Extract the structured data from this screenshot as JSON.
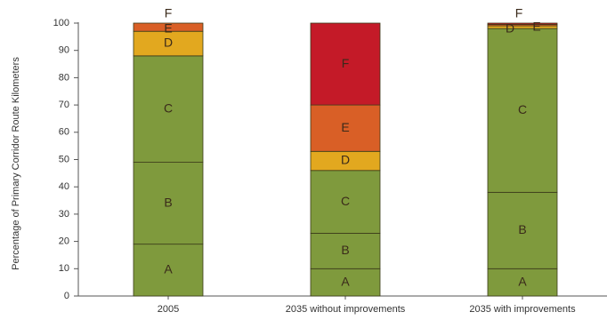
{
  "chart_data": {
    "type": "bar",
    "stacked": true,
    "title": "",
    "xlabel": "",
    "ylabel": "Percentage of Primary Corridor Route Kilometers",
    "ylim": [
      0,
      100
    ],
    "yticks": [
      0,
      10,
      20,
      30,
      40,
      50,
      60,
      70,
      80,
      90,
      100
    ],
    "categories": [
      "2005",
      "2035 without improvements",
      "2035 with improvements"
    ],
    "grid": false,
    "legend": "none",
    "series": [
      {
        "name": "A",
        "color": "#7f9a3d",
        "values": [
          19,
          10,
          10
        ]
      },
      {
        "name": "B",
        "color": "#7f9a3d",
        "values": [
          30,
          13,
          28
        ]
      },
      {
        "name": "C",
        "color": "#7f9a3d",
        "values": [
          39,
          23,
          60
        ]
      },
      {
        "name": "D",
        "color": "#e2a81f",
        "values": [
          9,
          7,
          1
        ]
      },
      {
        "name": "E",
        "color": "#d95f26",
        "values": [
          3,
          17,
          0.5
        ]
      },
      {
        "name": "F",
        "color": "#c41a28",
        "values": [
          0,
          30,
          0.5
        ]
      }
    ]
  }
}
